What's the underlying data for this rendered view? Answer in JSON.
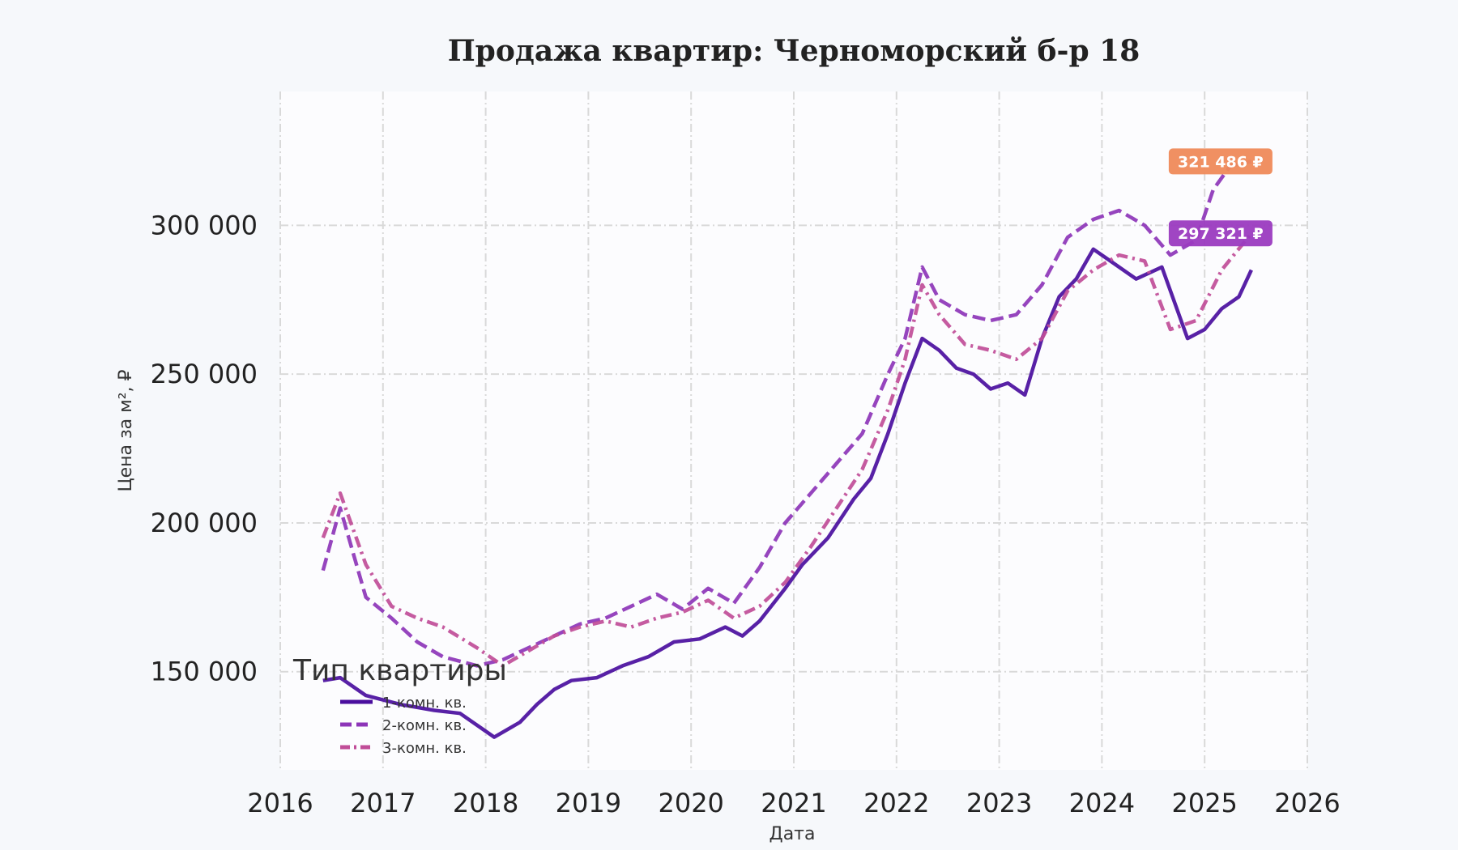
{
  "chart_data": {
    "type": "line",
    "title": "Продажа квартир: Черноморский б-р 18",
    "xlabel": "Дата",
    "ylabel": "Цена за м², ₽",
    "x_ticks": [
      "2016",
      "2017",
      "2018",
      "2019",
      "2020",
      "2021",
      "2022",
      "2023",
      "2024",
      "2025",
      "2026"
    ],
    "y_ticks": [
      {
        "value": 150000,
        "label": "150 000"
      },
      {
        "value": 200000,
        "label": "200 000"
      },
      {
        "value": 250000,
        "label": "250 000"
      },
      {
        "value": 300000,
        "label": "300 000"
      }
    ],
    "xlim": [
      "2016-01-01",
      "2026-01-01"
    ],
    "ylim": [
      117000,
      345000
    ],
    "grid": true,
    "legend": {
      "title": "Тип квартиры",
      "placement": "bottom-left"
    },
    "series": [
      {
        "name": "1-комн. кв.",
        "color": "#4a0e9e",
        "style": "solid",
        "points": [
          [
            "2016-06-01",
            147000
          ],
          [
            "2016-08-01",
            148000
          ],
          [
            "2016-11-01",
            142000
          ],
          [
            "2017-03-01",
            139000
          ],
          [
            "2017-07-01",
            137000
          ],
          [
            "2017-10-01",
            136000
          ],
          [
            "2017-12-01",
            132000
          ],
          [
            "2018-02-01",
            128000
          ],
          [
            "2018-05-01",
            133000
          ],
          [
            "2018-07-01",
            139000
          ],
          [
            "2018-09-01",
            144000
          ],
          [
            "2018-11-01",
            147000
          ],
          [
            "2019-02-01",
            148000
          ],
          [
            "2019-05-01",
            152000
          ],
          [
            "2019-08-01",
            155000
          ],
          [
            "2019-11-01",
            160000
          ],
          [
            "2020-02-01",
            161000
          ],
          [
            "2020-05-01",
            165000
          ],
          [
            "2020-07-01",
            162000
          ],
          [
            "2020-09-01",
            167000
          ],
          [
            "2020-12-01",
            178000
          ],
          [
            "2021-02-01",
            186000
          ],
          [
            "2021-05-01",
            195000
          ],
          [
            "2021-08-01",
            208000
          ],
          [
            "2021-10-01",
            215000
          ],
          [
            "2021-12-01",
            230000
          ],
          [
            "2022-02-01",
            247000
          ],
          [
            "2022-04-01",
            262000
          ],
          [
            "2022-06-01",
            258000
          ],
          [
            "2022-08-01",
            252000
          ],
          [
            "2022-10-01",
            250000
          ],
          [
            "2022-12-01",
            245000
          ],
          [
            "2023-02-01",
            247000
          ],
          [
            "2023-04-01",
            243000
          ],
          [
            "2023-06-01",
            262000
          ],
          [
            "2023-08-01",
            276000
          ],
          [
            "2023-10-01",
            282000
          ],
          [
            "2023-12-01",
            292000
          ],
          [
            "2024-02-01",
            288000
          ],
          [
            "2024-05-01",
            282000
          ],
          [
            "2024-08-01",
            286000
          ],
          [
            "2024-11-01",
            262000
          ],
          [
            "2025-01-01",
            265000
          ],
          [
            "2025-03-01",
            272000
          ],
          [
            "2025-05-01",
            276000
          ],
          [
            "2025-06-15",
            285000
          ]
        ]
      },
      {
        "name": "2-комн. кв.",
        "color": "#8d35b8",
        "style": "dashed",
        "points": [
          [
            "2016-06-01",
            184000
          ],
          [
            "2016-08-01",
            205000
          ],
          [
            "2016-11-01",
            175000
          ],
          [
            "2017-02-01",
            168000
          ],
          [
            "2017-05-01",
            160000
          ],
          [
            "2017-08-01",
            155000
          ],
          [
            "2017-12-01",
            152000
          ],
          [
            "2018-03-01",
            154000
          ],
          [
            "2018-06-01",
            158000
          ],
          [
            "2018-09-01",
            162000
          ],
          [
            "2018-12-01",
            166000
          ],
          [
            "2019-03-01",
            168000
          ],
          [
            "2019-06-01",
            172000
          ],
          [
            "2019-09-01",
            176000
          ],
          [
            "2019-12-01",
            171000
          ],
          [
            "2020-03-01",
            178000
          ],
          [
            "2020-06-01",
            173000
          ],
          [
            "2020-09-01",
            185000
          ],
          [
            "2020-12-01",
            200000
          ],
          [
            "2021-03-01",
            210000
          ],
          [
            "2021-06-01",
            220000
          ],
          [
            "2021-09-01",
            230000
          ],
          [
            "2021-12-01",
            250000
          ],
          [
            "2022-02-01",
            262000
          ],
          [
            "2022-04-01",
            286000
          ],
          [
            "2022-06-01",
            275000
          ],
          [
            "2022-09-01",
            270000
          ],
          [
            "2022-12-01",
            268000
          ],
          [
            "2023-03-01",
            270000
          ],
          [
            "2023-06-01",
            280000
          ],
          [
            "2023-09-01",
            296000
          ],
          [
            "2023-12-01",
            302000
          ],
          [
            "2024-03-01",
            305000
          ],
          [
            "2024-06-01",
            300000
          ],
          [
            "2024-09-01",
            290000
          ],
          [
            "2024-12-01",
            295000
          ],
          [
            "2025-02-01",
            312000
          ],
          [
            "2025-04-01",
            320000
          ],
          [
            "2025-06-15",
            321486
          ]
        ]
      },
      {
        "name": "3-комн. кв.",
        "color": "#c04d98",
        "style": "dashdot",
        "points": [
          [
            "2016-06-01",
            195000
          ],
          [
            "2016-08-01",
            210000
          ],
          [
            "2016-11-01",
            186000
          ],
          [
            "2017-02-01",
            172000
          ],
          [
            "2017-05-01",
            168000
          ],
          [
            "2017-08-01",
            165000
          ],
          [
            "2017-12-01",
            158000
          ],
          [
            "2018-03-01",
            152000
          ],
          [
            "2018-06-01",
            157000
          ],
          [
            "2018-09-01",
            162000
          ],
          [
            "2018-12-01",
            165000
          ],
          [
            "2019-03-01",
            167000
          ],
          [
            "2019-06-01",
            165000
          ],
          [
            "2019-09-01",
            168000
          ],
          [
            "2019-12-01",
            170000
          ],
          [
            "2020-03-01",
            174000
          ],
          [
            "2020-06-01",
            168000
          ],
          [
            "2020-09-01",
            172000
          ],
          [
            "2020-12-01",
            180000
          ],
          [
            "2021-03-01",
            192000
          ],
          [
            "2021-06-01",
            205000
          ],
          [
            "2021-09-01",
            218000
          ],
          [
            "2021-12-01",
            238000
          ],
          [
            "2022-02-01",
            255000
          ],
          [
            "2022-04-01",
            280000
          ],
          [
            "2022-06-01",
            270000
          ],
          [
            "2022-09-01",
            260000
          ],
          [
            "2022-12-01",
            258000
          ],
          [
            "2023-03-01",
            255000
          ],
          [
            "2023-06-01",
            262000
          ],
          [
            "2023-09-01",
            278000
          ],
          [
            "2023-12-01",
            285000
          ],
          [
            "2024-03-01",
            290000
          ],
          [
            "2024-06-01",
            288000
          ],
          [
            "2024-09-01",
            265000
          ],
          [
            "2024-12-01",
            268000
          ],
          [
            "2025-03-01",
            285000
          ],
          [
            "2025-06-15",
            297321
          ]
        ]
      }
    ],
    "end_labels": [
      {
        "text": "321 486 ₽",
        "series": "2-комн. кв.",
        "color": "#ef8a5a"
      },
      {
        "text": "297 321 ₽",
        "series": "3-комн. кв.",
        "color": "#9b3bc0"
      }
    ]
  }
}
